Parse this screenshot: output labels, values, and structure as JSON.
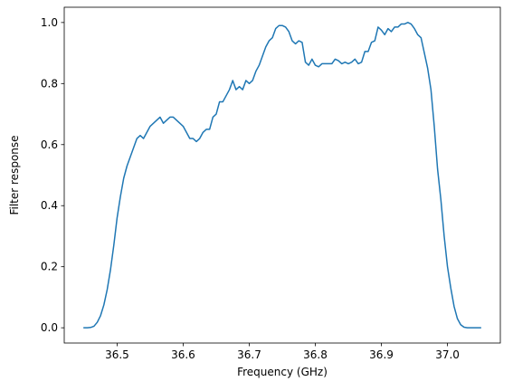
{
  "chart_data": {
    "type": "line",
    "title": "",
    "xlabel": "Frequency (GHz)",
    "ylabel": "Filter response",
    "xlim": [
      36.42,
      37.08
    ],
    "ylim": [
      -0.05,
      1.05
    ],
    "xticks": [
      36.5,
      36.6,
      36.7,
      36.8,
      36.9,
      37.0
    ],
    "xtick_labels": [
      "36.5",
      "36.6",
      "36.7",
      "36.8",
      "36.9",
      "37.0"
    ],
    "yticks": [
      0.0,
      0.2,
      0.4,
      0.6,
      0.8,
      1.0
    ],
    "ytick_labels": [
      "0.0",
      "0.2",
      "0.4",
      "0.6",
      "0.8",
      "1.0"
    ],
    "grid": false,
    "legend": "none",
    "series": [
      {
        "color": "#1f77b4",
        "x": [
          36.45,
          36.455,
          36.46,
          36.465,
          36.47,
          36.475,
          36.48,
          36.485,
          36.49,
          36.495,
          36.5,
          36.505,
          36.51,
          36.515,
          36.52,
          36.525,
          36.53,
          36.535,
          36.54,
          36.545,
          36.55,
          36.555,
          36.56,
          36.565,
          36.57,
          36.575,
          36.58,
          36.585,
          36.59,
          36.595,
          36.6,
          36.605,
          36.61,
          36.615,
          36.62,
          36.625,
          36.63,
          36.635,
          36.64,
          36.645,
          36.65,
          36.655,
          36.66,
          36.665,
          36.67,
          36.675,
          36.68,
          36.685,
          36.69,
          36.695,
          36.7,
          36.705,
          36.71,
          36.715,
          36.72,
          36.725,
          36.73,
          36.735,
          36.74,
          36.745,
          36.75,
          36.755,
          36.76,
          36.765,
          36.77,
          36.775,
          36.78,
          36.785,
          36.79,
          36.795,
          36.8,
          36.805,
          36.81,
          36.815,
          36.82,
          36.825,
          36.83,
          36.835,
          36.84,
          36.845,
          36.85,
          36.855,
          36.86,
          36.865,
          36.87,
          36.875,
          36.88,
          36.885,
          36.89,
          36.895,
          36.9,
          36.905,
          36.91,
          36.915,
          36.92,
          36.925,
          36.93,
          36.935,
          36.94,
          36.945,
          36.95,
          36.955,
          36.96,
          36.965,
          36.97,
          36.975,
          36.98,
          36.985,
          36.99,
          36.995,
          37.0,
          37.005,
          37.01,
          37.015,
          37.02,
          37.025,
          37.03,
          37.035,
          37.04,
          37.045,
          37.05
        ],
        "y": [
          0.0,
          0.0,
          0.001,
          0.005,
          0.018,
          0.04,
          0.075,
          0.125,
          0.19,
          0.27,
          0.36,
          0.43,
          0.49,
          0.53,
          0.56,
          0.59,
          0.62,
          0.63,
          0.62,
          0.64,
          0.66,
          0.67,
          0.68,
          0.69,
          0.67,
          0.68,
          0.69,
          0.69,
          0.68,
          0.67,
          0.66,
          0.64,
          0.62,
          0.62,
          0.61,
          0.62,
          0.64,
          0.65,
          0.65,
          0.69,
          0.7,
          0.74,
          0.74,
          0.76,
          0.78,
          0.81,
          0.78,
          0.79,
          0.78,
          0.81,
          0.8,
          0.81,
          0.84,
          0.86,
          0.89,
          0.92,
          0.94,
          0.95,
          0.98,
          0.99,
          0.99,
          0.985,
          0.97,
          0.94,
          0.93,
          0.94,
          0.935,
          0.87,
          0.86,
          0.88,
          0.86,
          0.855,
          0.865,
          0.865,
          0.865,
          0.865,
          0.88,
          0.875,
          0.865,
          0.87,
          0.865,
          0.87,
          0.88,
          0.865,
          0.87,
          0.905,
          0.905,
          0.935,
          0.94,
          0.985,
          0.975,
          0.96,
          0.98,
          0.97,
          0.985,
          0.985,
          0.995,
          0.995,
          1.0,
          0.995,
          0.98,
          0.96,
          0.95,
          0.9,
          0.85,
          0.78,
          0.66,
          0.52,
          0.42,
          0.3,
          0.2,
          0.13,
          0.07,
          0.03,
          0.01,
          0.002,
          0.0,
          0.0,
          0.0,
          0.0,
          0.0
        ]
      }
    ]
  }
}
